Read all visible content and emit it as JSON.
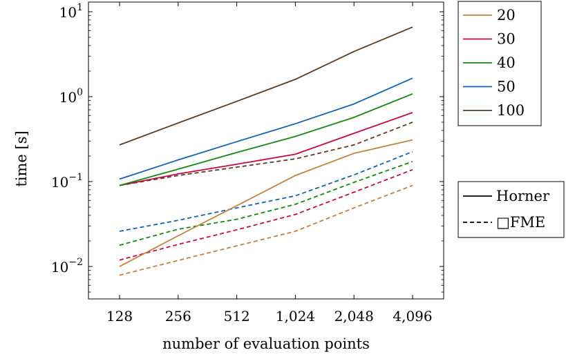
{
  "chart_data": {
    "type": "line",
    "xlabel": "number of evaluation points",
    "ylabel": "time [s]",
    "x": [
      128,
      256,
      512,
      1024,
      2048,
      4096
    ],
    "x_tick_labels": [
      "128",
      "256",
      "512",
      "1,024",
      "2,048",
      "4,096"
    ],
    "x_scale": "log2",
    "y_scale": "log10",
    "ylim": [
      0.0045,
      11
    ],
    "y_ticks": [
      {
        "base": "10",
        "exp": "−2",
        "value": 0.01
      },
      {
        "base": "10",
        "exp": "−1",
        "value": 0.1
      },
      {
        "base": "10",
        "exp": "0",
        "value": 1
      },
      {
        "base": "10",
        "exp": "1",
        "value": 10
      }
    ],
    "grid": false,
    "series_legend": {
      "placement": "top-right-outside",
      "entries": [
        {
          "name": "20",
          "color": "#c08040"
        },
        {
          "name": "30",
          "color": "#c4094a"
        },
        {
          "name": "40",
          "color": "#118811"
        },
        {
          "name": "50",
          "color": "#1060b0"
        },
        {
          "name": "100",
          "color": "#5c3a1e"
        }
      ]
    },
    "style_legend": {
      "placement": "right-outside",
      "entries": [
        {
          "name": "Horner",
          "style": "solid"
        },
        {
          "name": "FME",
          "style": "dashed",
          "prefix_symbol": "□"
        }
      ]
    },
    "series": [
      {
        "group": "20",
        "method": "Horner",
        "color": "#c08040",
        "style": "solid",
        "values": [
          0.01,
          0.023,
          0.052,
          0.118,
          0.215,
          0.31
        ]
      },
      {
        "group": "30",
        "method": "Horner",
        "color": "#c4094a",
        "style": "solid",
        "values": [
          0.09,
          0.123,
          0.16,
          0.21,
          0.37,
          0.65
        ]
      },
      {
        "group": "40",
        "method": "Horner",
        "color": "#118811",
        "style": "solid",
        "values": [
          0.09,
          0.14,
          0.22,
          0.34,
          0.57,
          1.08
        ]
      },
      {
        "group": "50",
        "method": "Horner",
        "color": "#1060b0",
        "style": "solid",
        "values": [
          0.107,
          0.18,
          0.295,
          0.48,
          0.82,
          1.65
        ]
      },
      {
        "group": "100",
        "method": "Horner",
        "color": "#5c3a1e",
        "style": "solid",
        "values": [
          0.27,
          0.49,
          0.88,
          1.6,
          3.4,
          6.6
        ]
      },
      {
        "group": "20",
        "method": "FME",
        "color": "#c08040",
        "style": "dashed",
        "values": [
          0.0079,
          0.0118,
          0.0175,
          0.026,
          0.049,
          0.09
        ]
      },
      {
        "group": "30",
        "method": "FME",
        "color": "#c4094a",
        "style": "dashed",
        "values": [
          0.0119,
          0.0182,
          0.027,
          0.041,
          0.075,
          0.138
        ]
      },
      {
        "group": "40",
        "method": "FME",
        "color": "#118811",
        "style": "dashed",
        "values": [
          0.0178,
          0.0275,
          0.036,
          0.054,
          0.098,
          0.172
        ]
      },
      {
        "group": "50",
        "method": "FME",
        "color": "#1060b0",
        "style": "dashed",
        "values": [
          0.026,
          0.035,
          0.049,
          0.068,
          0.12,
          0.225
        ]
      },
      {
        "group": "100",
        "method": "FME",
        "color": "#5c3a1e",
        "style": "dashed",
        "values": [
          0.09,
          0.118,
          0.148,
          0.185,
          0.27,
          0.5
        ]
      }
    ]
  }
}
